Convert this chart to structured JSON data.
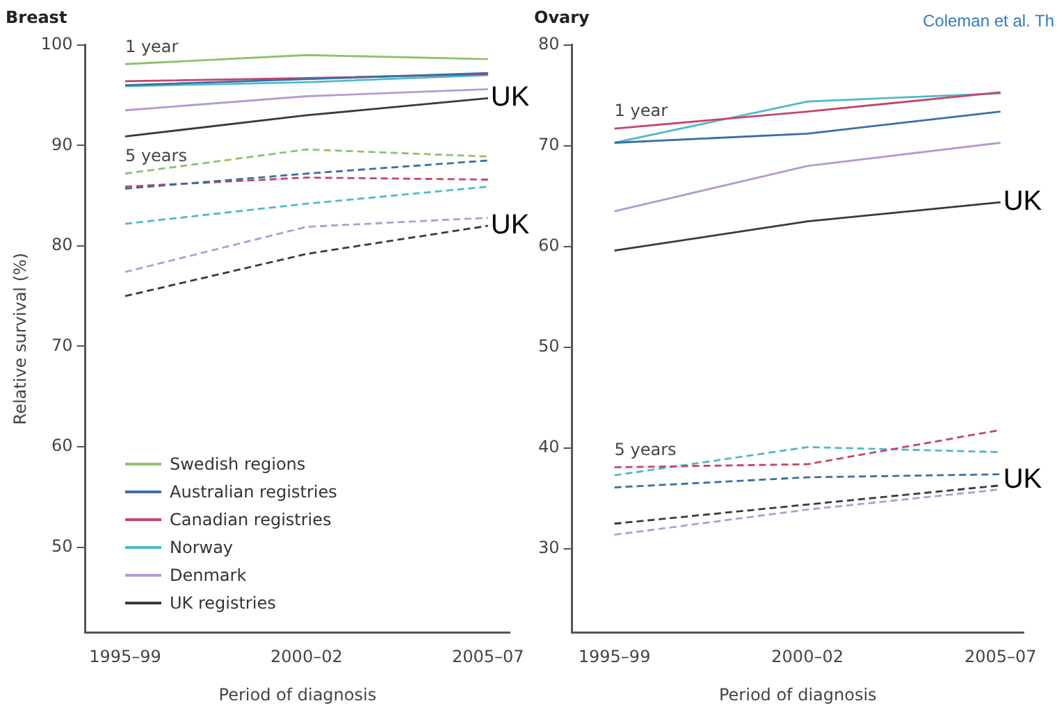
{
  "chart_data": [
    {
      "type": "line",
      "title": "Breast",
      "xlabel": "Period of diagnosis",
      "ylabel": "Relative survival (%)",
      "categories": [
        "1995–99",
        "2000–02",
        "2005–07"
      ],
      "ylim": [
        41.5,
        100
      ],
      "yticks": [
        50,
        60,
        70,
        80,
        90,
        100
      ],
      "grid": false,
      "marker": "none",
      "legend": "bottom left",
      "series": [
        {
          "name": "Swedish regions",
          "color": "#8dc26f",
          "line_style": "solid",
          "values": [
            98.1,
            99.0,
            98.6
          ]
        },
        {
          "name": "Australian registries",
          "color": "#3a6ea5",
          "line_style": "solid",
          "values": [
            96.0,
            96.6,
            97.2
          ]
        },
        {
          "name": "Canadian registries",
          "color": "#c4456b",
          "line_style": "solid",
          "values": [
            96.4,
            96.7,
            97.1
          ]
        },
        {
          "name": "Norway",
          "color": "#4fb9c9",
          "line_style": "solid",
          "values": [
            95.9,
            96.3,
            97.0
          ]
        },
        {
          "name": "Denmark",
          "color": "#b69ad3",
          "line_style": "solid",
          "values": [
            93.5,
            94.9,
            95.6
          ]
        },
        {
          "name": "UK registries",
          "color": "#3a3a3a",
          "line_style": "solid",
          "values": [
            90.9,
            93.0,
            94.7
          ]
        },
        {
          "color": "#8dc26f",
          "line_style": "dashed",
          "values": [
            87.2,
            89.6,
            88.9
          ]
        },
        {
          "color": "#3a6ea5",
          "line_style": "dashed",
          "values": [
            85.7,
            87.2,
            88.5
          ]
        },
        {
          "color": "#c4456b",
          "line_style": "dashed",
          "values": [
            85.9,
            86.8,
            86.6
          ]
        },
        {
          "color": "#4fb9c9",
          "line_style": "dashed",
          "values": [
            82.2,
            84.2,
            85.9
          ]
        },
        {
          "color": "#b69ad3",
          "line_style": "dashed",
          "values": [
            77.4,
            81.9,
            82.8
          ]
        },
        {
          "color": "#3a3a3a",
          "line_style": "dashed",
          "values": [
            75.0,
            79.2,
            82.0
          ]
        }
      ],
      "annotations": [
        "1 year",
        "5 years",
        {
          "text": "UK",
          "x": "2005–07",
          "y": 94.7
        },
        {
          "text": "UK",
          "x": "2005–07",
          "y": 82.0
        }
      ]
    },
    {
      "type": "line",
      "title": "Ovary",
      "xlabel": "Period of diagnosis",
      "categories": [
        "1995–99",
        "2000–02",
        "2005–07"
      ],
      "ylim": [
        21.7,
        80
      ],
      "yticks": [
        30,
        40,
        50,
        60,
        70,
        80
      ],
      "grid": false,
      "marker": "none",
      "legend": false,
      "series": [
        {
          "color": "#3a6ea5",
          "line_style": "solid",
          "values": [
            70.3,
            71.2,
            73.4
          ]
        },
        {
          "color": "#c4456b",
          "line_style": "solid",
          "values": [
            71.7,
            73.4,
            75.3
          ]
        },
        {
          "color": "#4fb9c9",
          "line_style": "solid",
          "values": [
            70.3,
            74.4,
            75.2
          ]
        },
        {
          "color": "#b69ad3",
          "line_style": "solid",
          "values": [
            63.5,
            68.0,
            70.3
          ]
        },
        {
          "color": "#3a3a3a",
          "line_style": "solid",
          "values": [
            59.6,
            62.5,
            64.4
          ]
        },
        {
          "color": "#3a6ea5",
          "line_style": "dashed",
          "values": [
            36.1,
            37.1,
            37.4
          ]
        },
        {
          "color": "#c4456b",
          "line_style": "dashed",
          "values": [
            38.1,
            38.4,
            41.8
          ]
        },
        {
          "color": "#4fb9c9",
          "line_style": "dashed",
          "values": [
            37.3,
            40.1,
            39.6
          ]
        },
        {
          "color": "#b69ad3",
          "line_style": "dashed",
          "values": [
            31.4,
            33.9,
            35.9
          ]
        },
        {
          "color": "#3a3a3a",
          "line_style": "dashed",
          "values": [
            32.5,
            34.4,
            36.3
          ]
        }
      ],
      "annotations": [
        "1 year",
        "5 years",
        "Coleman et al. Th",
        {
          "text": "UK",
          "x": "2005–07",
          "y": 64.4
        },
        {
          "text": "UK",
          "x": "2005–07",
          "y": 36.8
        }
      ]
    }
  ]
}
